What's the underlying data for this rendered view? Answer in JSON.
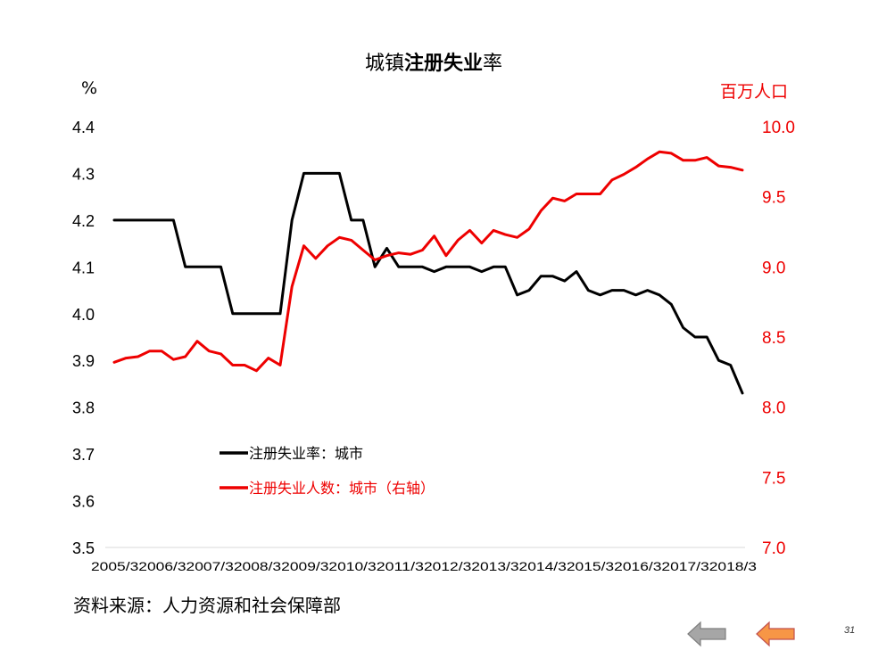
{
  "title_parts": [
    "城镇",
    "注册失业",
    "率"
  ],
  "source_text": "资料来源：人力资源和社会保障部",
  "page_number": "31",
  "chart_data": {
    "type": "line",
    "title": "城镇注册失业率",
    "x_tick_labels": [
      "2005/3",
      "2006/3",
      "2007/3",
      "2008/3",
      "2009/3",
      "2010/3",
      "2011/3",
      "2012/3",
      "2013/3",
      "2014/3",
      "2015/3",
      "2016/3",
      "2017/3",
      "2018/3"
    ],
    "left_axis": {
      "unit": "%",
      "ylim": [
        3.5,
        4.4
      ],
      "ticks": [
        "3.5",
        "3.6",
        "3.7",
        "3.8",
        "3.9",
        "4.0",
        "4.1",
        "4.2",
        "4.3",
        "4.4"
      ]
    },
    "right_axis": {
      "unit": "百万人口",
      "ylim": [
        7.0,
        10.0
      ],
      "ticks": [
        "7.0",
        "7.5",
        "8.0",
        "8.5",
        "9.0",
        "9.5",
        "10.0"
      ]
    },
    "grid": false,
    "legend_placement": "lower-left",
    "series": [
      {
        "name": "注册失业率：城市",
        "axis": "left",
        "color": "#000000",
        "values": [
          4.2,
          4.2,
          4.2,
          4.2,
          4.2,
          4.2,
          4.1,
          4.1,
          4.1,
          4.1,
          4.0,
          4.0,
          4.0,
          4.0,
          4.0,
          4.2,
          4.3,
          4.3,
          4.3,
          4.3,
          4.2,
          4.2,
          4.1,
          4.14,
          4.1,
          4.1,
          4.1,
          4.09,
          4.1,
          4.1,
          4.1,
          4.09,
          4.1,
          4.1,
          4.04,
          4.05,
          4.08,
          4.08,
          4.07,
          4.09,
          4.05,
          4.04,
          4.05,
          4.05,
          4.04,
          4.05,
          4.04,
          4.02,
          3.97,
          3.95,
          3.95,
          3.9,
          3.89,
          3.83
        ]
      },
      {
        "name": "注册失业人数：城市（右轴）",
        "axis": "right",
        "color": "#ee0000",
        "values": [
          8.32,
          8.35,
          8.36,
          8.4,
          8.4,
          8.34,
          8.36,
          8.47,
          8.4,
          8.38,
          8.3,
          8.3,
          8.26,
          8.35,
          8.3,
          8.86,
          9.15,
          9.06,
          9.15,
          9.21,
          9.19,
          9.12,
          9.05,
          9.08,
          9.1,
          9.09,
          9.12,
          9.22,
          9.08,
          9.19,
          9.26,
          9.17,
          9.26,
          9.23,
          9.21,
          9.27,
          9.4,
          9.49,
          9.47,
          9.52,
          9.52,
          9.52,
          9.62,
          9.66,
          9.71,
          9.77,
          9.82,
          9.81,
          9.76,
          9.76,
          9.78,
          9.72,
          9.71,
          9.69
        ]
      }
    ]
  }
}
